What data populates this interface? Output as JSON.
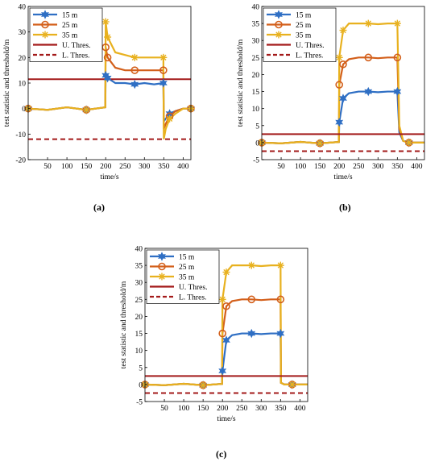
{
  "captions": [
    "(a)",
    "(b)",
    "(c)"
  ],
  "series_styles": {
    "colors": {
      "15 m": "#2f6fc4",
      "25 m": "#d35f1a",
      "35 m": "#e8b11f",
      "U. Thres.": "#a31a1a",
      "L. Thres.": "#a31a1a"
    },
    "markers": {
      "15 m": "hexagram",
      "25 m": "circle",
      "35 m": "asterisk"
    },
    "line_styles": {
      "U. Thres.": "solid",
      "L. Thres.": "dashed"
    }
  },
  "chart_data": [
    {
      "id": "a",
      "type": "line",
      "xlabel": "time/s",
      "ylabel": "test statistic and threshold/m",
      "xlim": [
        0,
        420
      ],
      "ylim": [
        -20,
        40
      ],
      "xticks": [
        50,
        100,
        150,
        200,
        250,
        300,
        350,
        400
      ],
      "yticks": [
        -20,
        -10,
        0,
        10,
        20,
        30,
        40
      ],
      "legend": {
        "position": "top-left",
        "entries": [
          "15 m",
          "25 m",
          "35 m",
          "U. Thres.",
          "L. Thres."
        ]
      },
      "series": [
        {
          "name": "15 m",
          "x": [
            0,
            50,
            100,
            150,
            199,
            200,
            205,
            225,
            250,
            275,
            300,
            325,
            349,
            350,
            355,
            365,
            380,
            400,
            420
          ],
          "y": [
            0,
            -0.5,
            0.5,
            -0.5,
            0.5,
            13,
            12,
            10,
            10,
            9.5,
            10,
            9.5,
            10,
            -5,
            -4,
            -2,
            -1,
            0,
            0
          ]
        },
        {
          "name": "25 m",
          "x": [
            0,
            50,
            100,
            150,
            199,
            200,
            205,
            225,
            250,
            275,
            300,
            325,
            349,
            350,
            355,
            365,
            380,
            400,
            420
          ],
          "y": [
            0,
            -0.5,
            0.5,
            -0.5,
            0.5,
            24,
            20,
            16,
            15,
            15,
            15,
            15,
            15,
            -8,
            -6,
            -3,
            -1,
            0,
            0
          ]
        },
        {
          "name": "35 m",
          "x": [
            0,
            50,
            100,
            150,
            199,
            200,
            205,
            225,
            250,
            275,
            300,
            325,
            349,
            350,
            355,
            365,
            380,
            400,
            420
          ],
          "y": [
            0,
            -0.5,
            0.5,
            -0.5,
            0.5,
            34,
            28,
            22,
            21,
            20,
            20,
            20,
            20,
            -12,
            -8,
            -4,
            -2,
            0,
            0
          ]
        },
        {
          "name": "U. Thres.",
          "x": [
            0,
            420
          ],
          "y": [
            11.5,
            11.5
          ]
        },
        {
          "name": "L. Thres.",
          "x": [
            0,
            420
          ],
          "y": [
            -12,
            -12
          ]
        }
      ]
    },
    {
      "id": "b",
      "type": "line",
      "xlabel": "time/s",
      "ylabel": "test statistic and threshold/m",
      "xlim": [
        0,
        420
      ],
      "ylim": [
        -5,
        40
      ],
      "xticks": [
        50,
        100,
        150,
        200,
        250,
        300,
        350,
        400
      ],
      "yticks": [
        -5,
        0,
        5,
        10,
        15,
        20,
        25,
        30,
        35,
        40
      ],
      "legend": {
        "position": "top-left",
        "entries": [
          "15 m",
          "25 m",
          "35 m",
          "U. Thres.",
          "L. Thres."
        ]
      },
      "series": [
        {
          "name": "15 m",
          "x": [
            0,
            50,
            100,
            150,
            199,
            200,
            210,
            225,
            250,
            275,
            300,
            325,
            350,
            355,
            365,
            380,
            400,
            420
          ],
          "y": [
            0,
            -0.2,
            0.2,
            -0.2,
            0.2,
            6,
            13,
            14.5,
            15,
            15,
            14.8,
            15,
            15,
            3,
            0.5,
            0,
            0,
            0
          ]
        },
        {
          "name": "25 m",
          "x": [
            0,
            50,
            100,
            150,
            199,
            200,
            210,
            225,
            250,
            275,
            300,
            325,
            350,
            355,
            365,
            380,
            400,
            420
          ],
          "y": [
            0,
            -0.2,
            0.2,
            -0.2,
            0.2,
            17,
            23,
            24.5,
            25,
            25,
            24.8,
            25,
            25,
            4,
            0.5,
            0,
            0,
            0
          ]
        },
        {
          "name": "35 m",
          "x": [
            0,
            50,
            100,
            150,
            199,
            200,
            210,
            225,
            250,
            275,
            300,
            325,
            350,
            355,
            365,
            380,
            400,
            420
          ],
          "y": [
            0,
            -0.2,
            0.2,
            -0.2,
            0.2,
            25,
            33,
            35,
            35,
            35,
            34.8,
            35,
            35,
            5,
            0.5,
            0,
            0,
            0
          ]
        },
        {
          "name": "U. Thres.",
          "x": [
            0,
            420
          ],
          "y": [
            2.5,
            2.5
          ]
        },
        {
          "name": "L. Thres.",
          "x": [
            0,
            420
          ],
          "y": [
            -2.5,
            -2.5
          ]
        }
      ]
    },
    {
      "id": "c",
      "type": "line",
      "xlabel": "time/s",
      "ylabel": "test statistic and threshold/m",
      "xlim": [
        0,
        420
      ],
      "ylim": [
        -5,
        40
      ],
      "xticks": [
        50,
        100,
        150,
        200,
        250,
        300,
        350,
        400
      ],
      "yticks": [
        -5,
        0,
        5,
        10,
        15,
        20,
        25,
        30,
        35,
        40
      ],
      "legend": {
        "position": "top-left",
        "entries": [
          "15 m",
          "25 m",
          "35 m",
          "U. Thres.",
          "L. Thres."
        ]
      },
      "series": [
        {
          "name": "15 m",
          "x": [
            0,
            50,
            100,
            150,
            199,
            200,
            210,
            225,
            250,
            275,
            300,
            325,
            350,
            351,
            360,
            380,
            400,
            420
          ],
          "y": [
            0,
            -0.2,
            0.2,
            -0.2,
            0.2,
            4,
            13,
            14.5,
            15,
            15,
            14.8,
            15,
            15,
            0.5,
            0,
            0,
            0,
            0
          ]
        },
        {
          "name": "25 m",
          "x": [
            0,
            50,
            100,
            150,
            199,
            200,
            210,
            225,
            250,
            275,
            300,
            325,
            350,
            351,
            360,
            380,
            400,
            420
          ],
          "y": [
            0,
            -0.2,
            0.2,
            -0.2,
            0.2,
            15,
            23,
            24.5,
            25,
            25,
            24.8,
            25,
            25,
            0.5,
            0,
            0,
            0,
            0
          ]
        },
        {
          "name": "35 m",
          "x": [
            0,
            50,
            100,
            150,
            199,
            200,
            210,
            225,
            250,
            275,
            300,
            325,
            350,
            351,
            360,
            380,
            400,
            420
          ],
          "y": [
            0,
            -0.2,
            0.2,
            -0.2,
            0.2,
            25,
            33,
            35,
            35,
            35,
            34.8,
            35,
            35,
            0.5,
            0,
            0,
            0,
            0
          ]
        },
        {
          "name": "U. Thres.",
          "x": [
            0,
            420
          ],
          "y": [
            2.5,
            2.5
          ]
        },
        {
          "name": "L. Thres.",
          "x": [
            0,
            420
          ],
          "y": [
            -2.5,
            -2.5
          ]
        }
      ]
    }
  ]
}
